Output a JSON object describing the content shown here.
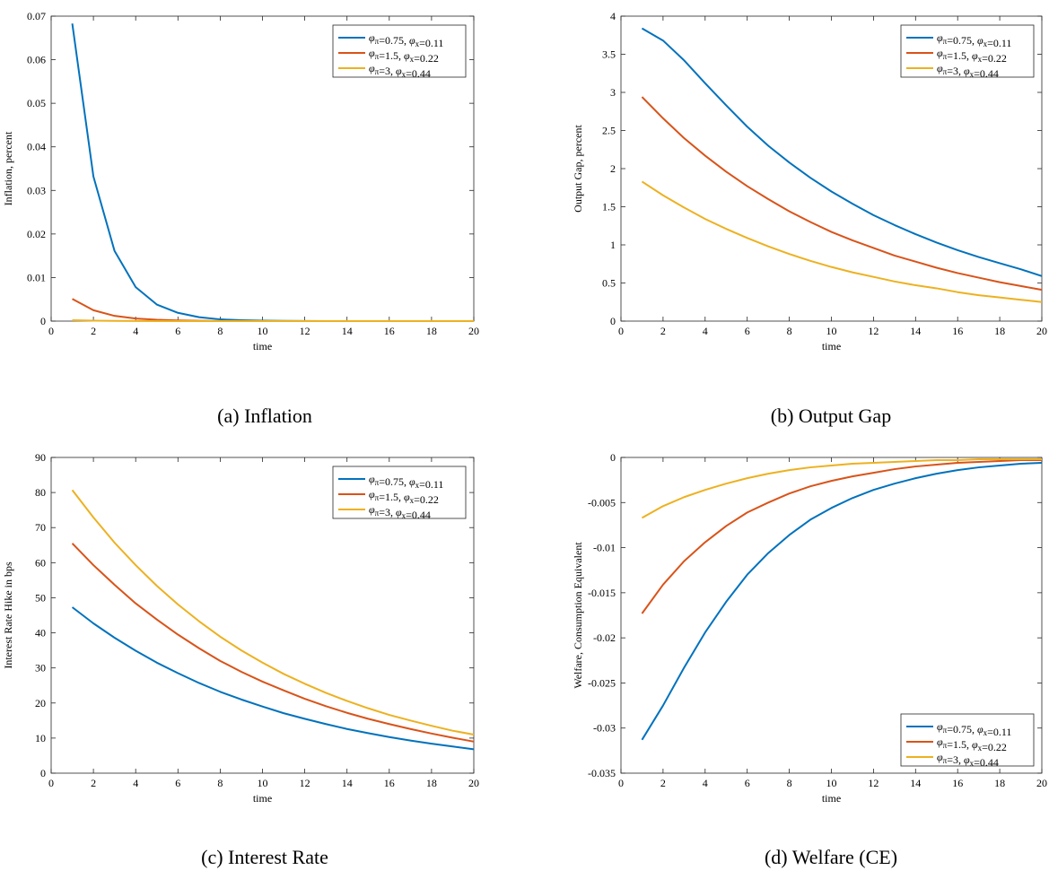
{
  "chart_data": [
    {
      "type": "line",
      "caption": "(a) Inflation",
      "xlabel": "time",
      "ylabel": "Inflation, percent",
      "xlim": [
        0,
        20
      ],
      "ylim": [
        0,
        0.07
      ],
      "xticks": [
        "0",
        "2",
        "4",
        "6",
        "8",
        "10",
        "12",
        "14",
        "16",
        "18",
        "20"
      ],
      "yticks": [
        "0",
        "0.01",
        "0.02",
        "0.03",
        "0.04",
        "0.05",
        "0.06",
        "0.07"
      ],
      "legend_position": "top-right",
      "x": [
        1,
        2,
        3,
        4,
        5,
        6,
        7,
        8,
        9,
        10,
        11,
        12,
        13,
        14,
        15,
        16,
        17,
        18,
        19,
        20
      ],
      "series": [
        {
          "name": "φπ=0.75, φx=0.11",
          "color": "#0072BD",
          "values": [
            0.0683,
            0.0332,
            0.0161,
            0.0078,
            0.0038,
            0.0019,
            0.0009,
            0.0004,
            0.0002,
            0.0001,
            5e-05,
            2e-05,
            1e-05,
            0,
            0,
            0,
            0,
            0,
            0,
            0
          ]
        },
        {
          "name": "φπ=1.5, φx=0.22",
          "color": "#D95319",
          "values": [
            0.0051,
            0.0025,
            0.0012,
            0.0006,
            0.0003,
            0.00015,
            7e-05,
            3e-05,
            2e-05,
            1e-05,
            0,
            0,
            0,
            0,
            0,
            0,
            0,
            0,
            0,
            0
          ]
        },
        {
          "name": "φπ=3, φx=0.44",
          "color": "#EDB120",
          "values": [
            0.0002,
            0.0001,
            5e-05,
            2e-05,
            1e-05,
            0,
            0,
            0,
            0,
            0,
            0,
            0,
            0,
            0,
            0,
            0,
            0,
            0,
            0,
            0
          ]
        }
      ]
    },
    {
      "type": "line",
      "caption": "(b) Output Gap",
      "xlabel": "time",
      "ylabel": "Output Gap, percent",
      "xlim": [
        0,
        20
      ],
      "ylim": [
        0,
        4
      ],
      "xticks": [
        "0",
        "2",
        "4",
        "6",
        "8",
        "10",
        "12",
        "14",
        "16",
        "18",
        "20"
      ],
      "yticks": [
        "0",
        "0.5",
        "1",
        "1.5",
        "2",
        "2.5",
        "3",
        "3.5",
        "4"
      ],
      "legend_position": "top-right",
      "x": [
        1,
        2,
        3,
        4,
        5,
        6,
        7,
        8,
        9,
        10,
        11,
        12,
        13,
        14,
        15,
        16,
        17,
        18,
        19,
        20
      ],
      "series": [
        {
          "name": "φπ=0.75, φx=0.11",
          "color": "#0072BD",
          "values": [
            3.84,
            3.68,
            3.42,
            3.12,
            2.83,
            2.55,
            2.3,
            2.08,
            1.88,
            1.7,
            1.54,
            1.39,
            1.26,
            1.14,
            1.03,
            0.93,
            0.84,
            0.76,
            0.68,
            0.59
          ]
        },
        {
          "name": "φπ=1.5, φx=0.22",
          "color": "#D95319",
          "values": [
            2.94,
            2.66,
            2.4,
            2.17,
            1.96,
            1.77,
            1.6,
            1.44,
            1.3,
            1.17,
            1.06,
            0.96,
            0.86,
            0.78,
            0.7,
            0.63,
            0.57,
            0.51,
            0.46,
            0.41
          ]
        },
        {
          "name": "φπ=3, φx=0.44",
          "color": "#EDB120",
          "values": [
            1.83,
            1.65,
            1.49,
            1.34,
            1.21,
            1.09,
            0.98,
            0.88,
            0.79,
            0.71,
            0.64,
            0.58,
            0.52,
            0.47,
            0.43,
            0.38,
            0.34,
            0.31,
            0.28,
            0.25
          ]
        }
      ]
    },
    {
      "type": "line",
      "caption": "(c) Interest Rate",
      "xlabel": "time",
      "ylabel": "Interest Rate Hike in bps",
      "xlim": [
        0,
        20
      ],
      "ylim": [
        0,
        90
      ],
      "xticks": [
        "0",
        "2",
        "4",
        "6",
        "8",
        "10",
        "12",
        "14",
        "16",
        "18",
        "20"
      ],
      "yticks": [
        "0",
        "10",
        "20",
        "30",
        "40",
        "50",
        "60",
        "70",
        "80",
        "90"
      ],
      "legend_position": "top-right",
      "x": [
        1,
        2,
        3,
        4,
        5,
        6,
        7,
        8,
        9,
        10,
        11,
        12,
        13,
        14,
        15,
        16,
        17,
        18,
        19,
        20
      ],
      "series": [
        {
          "name": "φπ=0.75, φx=0.11",
          "color": "#0072BD",
          "values": [
            47.3,
            42.7,
            38.6,
            34.9,
            31.5,
            28.5,
            25.7,
            23.2,
            21.0,
            19.0,
            17.1,
            15.5,
            14.0,
            12.6,
            11.4,
            10.3,
            9.3,
            8.4,
            7.6,
            6.8
          ]
        },
        {
          "name": "φπ=1.5, φx=0.22",
          "color": "#D95319",
          "values": [
            65.5,
            59.3,
            53.7,
            48.4,
            43.8,
            39.5,
            35.6,
            32.0,
            28.9,
            26.1,
            23.6,
            21.2,
            19.1,
            17.2,
            15.5,
            14.0,
            12.6,
            11.3,
            10.1,
            9.0
          ]
        },
        {
          "name": "φπ=3, φx=0.44",
          "color": "#EDB120",
          "values": [
            80.7,
            72.9,
            65.7,
            59.3,
            53.4,
            48.1,
            43.3,
            38.9,
            35.0,
            31.5,
            28.3,
            25.5,
            22.9,
            20.6,
            18.5,
            16.6,
            15.0,
            13.5,
            12.1,
            11.0
          ]
        }
      ]
    },
    {
      "type": "line",
      "caption": "(d) Welfare (CE)",
      "xlabel": "time",
      "ylabel": "Welfare, Consumption Equivalent",
      "xlim": [
        0,
        20
      ],
      "ylim": [
        -0.035,
        0
      ],
      "xticks": [
        "0",
        "2",
        "4",
        "6",
        "8",
        "10",
        "12",
        "14",
        "16",
        "18",
        "20"
      ],
      "yticks": [
        "-0.035",
        "-0.03",
        "-0.025",
        "-0.02",
        "-0.015",
        "-0.01",
        "-0.005",
        "0"
      ],
      "legend_position": "bottom-right",
      "x": [
        1,
        2,
        3,
        4,
        5,
        6,
        7,
        8,
        9,
        10,
        11,
        12,
        13,
        14,
        15,
        16,
        17,
        18,
        19,
        20
      ],
      "series": [
        {
          "name": "φπ=0.75, φx=0.11",
          "color": "#0072BD",
          "values": [
            -0.0313,
            -0.0275,
            -0.0233,
            -0.0194,
            -0.016,
            -0.013,
            -0.0106,
            -0.0086,
            -0.0069,
            -0.0056,
            -0.0045,
            -0.0036,
            -0.0029,
            -0.0023,
            -0.0018,
            -0.0014,
            -0.0011,
            -0.0009,
            -0.0007,
            -0.0006
          ]
        },
        {
          "name": "φπ=1.5, φx=0.22",
          "color": "#D95319",
          "values": [
            -0.0173,
            -0.0141,
            -0.0115,
            -0.0094,
            -0.0076,
            -0.0061,
            -0.005,
            -0.004,
            -0.0032,
            -0.0026,
            -0.0021,
            -0.0017,
            -0.0013,
            -0.001,
            -0.0008,
            -0.0006,
            -0.0005,
            -0.0004,
            -0.0003,
            -0.0003
          ]
        },
        {
          "name": "φπ=3, φx=0.44",
          "color": "#EDB120",
          "values": [
            -0.0067,
            -0.0054,
            -0.0044,
            -0.0036,
            -0.0029,
            -0.0023,
            -0.0018,
            -0.0014,
            -0.0011,
            -0.0009,
            -0.0007,
            -0.0006,
            -0.0005,
            -0.0004,
            -0.0003,
            -0.0003,
            -0.0002,
            -0.0002,
            -0.0002,
            -0.0002
          ]
        }
      ]
    }
  ]
}
